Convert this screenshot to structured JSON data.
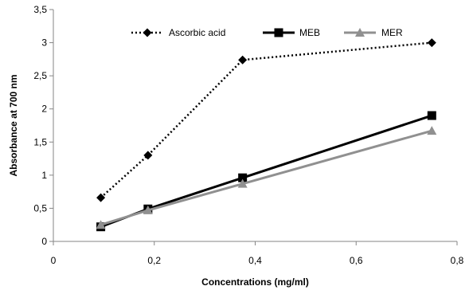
{
  "chart_data": {
    "type": "line",
    "title": "",
    "xlabel": "Concentrations (mg/ml)",
    "ylabel": "Absorbance at 700 nm",
    "xlim": [
      0,
      0.8
    ],
    "ylim": [
      0,
      3.5
    ],
    "x_ticks": [
      "0",
      "0,2",
      "0,4",
      "0,6",
      "0,8"
    ],
    "y_ticks": [
      "0",
      "0,5",
      "1",
      "1,5",
      "2",
      "2,5",
      "3",
      "3,5"
    ],
    "grid": false,
    "legend_position": "top",
    "x": [
      0.094,
      0.1875,
      0.375,
      0.75
    ],
    "series": [
      {
        "name": "Ascorbic acid",
        "values": [
          0.66,
          1.3,
          2.74,
          3.0
        ],
        "color": "#000000",
        "line": "dotted",
        "marker": "diamond"
      },
      {
        "name": "MEB",
        "values": [
          0.22,
          0.49,
          0.96,
          1.9
        ],
        "color": "#000000",
        "line": "solid",
        "marker": "square"
      },
      {
        "name": "MER",
        "values": [
          0.25,
          0.47,
          0.87,
          1.67
        ],
        "color": "#909090",
        "line": "solid",
        "marker": "triangle"
      }
    ]
  }
}
